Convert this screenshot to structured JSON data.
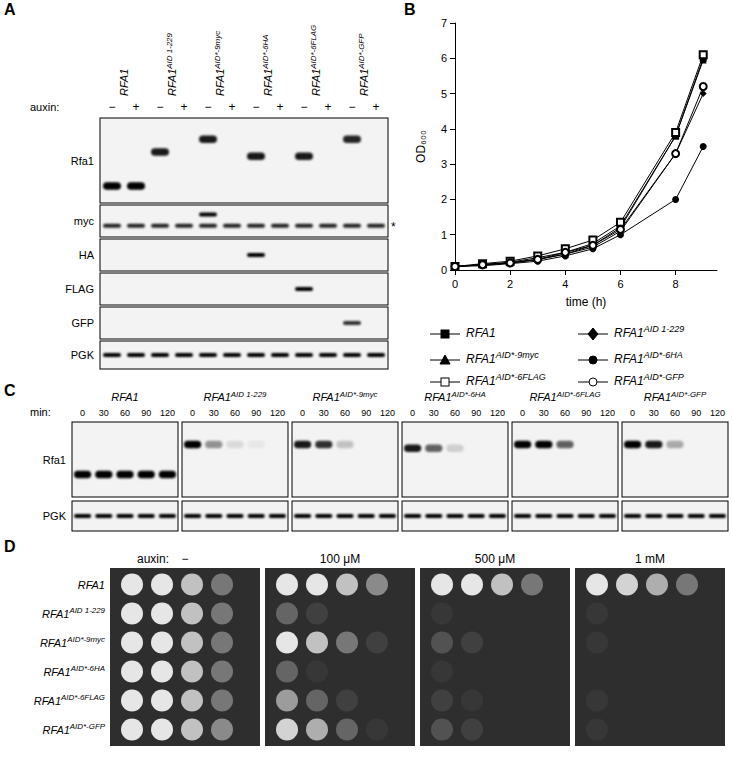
{
  "strains": [
    {
      "name": "RFA1"
    },
    {
      "name": "RFA1",
      "superscript": "AID 1-229"
    },
    {
      "name": "RFA1",
      "superscript": "AID*-9myc"
    },
    {
      "name": "RFA1",
      "superscript": "AID*-6HA"
    },
    {
      "name": "RFA1",
      "superscript": "AID*-6FLAG"
    },
    {
      "name": "RFA1",
      "superscript": "AID*-GFP"
    }
  ],
  "panels": {
    "A": {
      "letter": "A",
      "auxin_label": "auxin:",
      "auxin_states": [
        "−",
        "+"
      ],
      "rows": [
        {
          "label": "Rfa1",
          "bands": [
            {
              "mobility": 0.8,
              "intensity": [
                1,
                1,
                0,
                0,
                0,
                0,
                0,
                0,
                0,
                0,
                0,
                0
              ]
            },
            {
              "mobility": 0.4,
              "intensity": [
                0,
                0,
                0.9,
                0,
                0,
                0,
                0,
                0,
                0,
                0,
                0,
                0
              ]
            },
            {
              "mobility": 0.25,
              "intensity": [
                0,
                0,
                0,
                0,
                0.9,
                0,
                0,
                0,
                0,
                0,
                0.85,
                0
              ]
            },
            {
              "mobility": 0.45,
              "intensity": [
                0,
                0,
                0,
                0,
                0,
                0,
                0.9,
                0,
                0.9,
                0,
                0,
                0
              ]
            }
          ]
        },
        {
          "label": "myc",
          "bands": [
            {
              "mobility": 0.3,
              "intensity": [
                0,
                0,
                0,
                0,
                1,
                0,
                0,
                0,
                0,
                0,
                0,
                0
              ]
            },
            {
              "mobility": 0.65,
              "intensity": [
                0.85,
                0.85,
                0.85,
                0.85,
                0.85,
                0.85,
                0.85,
                0.85,
                0.85,
                0.85,
                0.85,
                0.85
              ],
              "note": "*"
            }
          ]
        },
        {
          "label": "HA",
          "bands": [
            {
              "mobility": 0.5,
              "intensity": [
                0,
                0,
                0,
                0,
                0,
                0,
                1,
                0,
                0,
                0,
                0,
                0
              ]
            }
          ]
        },
        {
          "label": "FLAG",
          "bands": [
            {
              "mobility": 0.5,
              "intensity": [
                0,
                0,
                0,
                0,
                0,
                0,
                0,
                0,
                1,
                0,
                0,
                0
              ]
            }
          ]
        },
        {
          "label": "GFP",
          "bands": [
            {
              "mobility": 0.5,
              "intensity": [
                0,
                0,
                0,
                0,
                0,
                0,
                0,
                0,
                0,
                0,
                0.8,
                0
              ]
            }
          ]
        },
        {
          "label": "PGK",
          "bands": [
            {
              "mobility": 0.5,
              "intensity": [
                1,
                1,
                1,
                1,
                1,
                1,
                1,
                1,
                1,
                1,
                1,
                1
              ]
            }
          ]
        }
      ]
    },
    "C": {
      "letter": "C",
      "time_label": "min:",
      "times": [
        0,
        30,
        60,
        90,
        120
      ],
      "rows": [
        "Rfa1",
        "PGK"
      ],
      "blots": [
        {
          "mobility": [
            0.7,
            0.5
          ],
          "intensity": [
            [
              1,
              1,
              1,
              1,
              1
            ],
            [
              1,
              1,
              1,
              1,
              1
            ]
          ]
        },
        {
          "mobility": [
            0.3,
            0.5
          ],
          "intensity": [
            [
              1,
              0.4,
              0.1,
              0.05,
              0
            ],
            [
              1,
              1,
              1,
              1,
              1
            ]
          ]
        },
        {
          "mobility": [
            0.3,
            0.5
          ],
          "intensity": [
            [
              0.9,
              0.8,
              0.2,
              0,
              0
            ],
            [
              1,
              1,
              1,
              1,
              1
            ]
          ]
        },
        {
          "mobility": [
            0.35,
            0.5
          ],
          "intensity": [
            [
              0.9,
              0.6,
              0.15,
              0,
              0
            ],
            [
              1,
              1,
              1,
              1,
              1
            ]
          ]
        },
        {
          "mobility": [
            0.3,
            0.5
          ],
          "intensity": [
            [
              1,
              1,
              0.6,
              0,
              0
            ],
            [
              1,
              1,
              1,
              1,
              1
            ]
          ]
        },
        {
          "mobility": [
            0.3,
            0.5
          ],
          "intensity": [
            [
              1,
              0.9,
              0.3,
              0,
              0
            ],
            [
              1,
              1,
              1,
              1,
              1
            ]
          ]
        }
      ]
    },
    "D": {
      "letter": "D",
      "auxin_label": "auxin:",
      "conditions": [
        "−",
        "100 μM",
        "500 μM",
        "1 mM"
      ],
      "growth": [
        [
          [
            1,
            1,
            0.8,
            0.4
          ],
          [
            1,
            1,
            0.8,
            0.4
          ],
          [
            1,
            1,
            0.8,
            0.4
          ],
          [
            1,
            1,
            0.8,
            0.4
          ],
          [
            1,
            1,
            0.8,
            0.4
          ],
          [
            1,
            1,
            0.8,
            0.5
          ]
        ],
        [
          [
            1,
            1,
            0.8,
            0.5
          ],
          [
            0.3,
            0.1,
            0,
            0
          ],
          [
            1,
            0.8,
            0.4,
            0.1
          ],
          [
            0.3,
            0.05,
            0,
            0
          ],
          [
            0.6,
            0.3,
            0.1,
            0
          ],
          [
            0.9,
            0.7,
            0.3,
            0.05
          ]
        ],
        [
          [
            1,
            1,
            0.8,
            0.4
          ],
          [
            0.05,
            0,
            0,
            0
          ],
          [
            0.2,
            0.1,
            0,
            0
          ],
          [
            0.05,
            0,
            0,
            0
          ],
          [
            0.1,
            0.05,
            0,
            0
          ],
          [
            0.2,
            0.1,
            0,
            0
          ]
        ],
        [
          [
            1,
            0.9,
            0.7,
            0.4
          ],
          [
            0.05,
            0,
            0,
            0
          ],
          [
            0.05,
            0,
            0,
            0
          ],
          [
            0,
            0,
            0,
            0
          ],
          [
            0.05,
            0,
            0,
            0
          ],
          [
            0.05,
            0,
            0,
            0
          ]
        ]
      ]
    }
  },
  "chart_data": {
    "type": "line",
    "letter": "B",
    "x": [
      0,
      1,
      2,
      3,
      4,
      5,
      6,
      8,
      9
    ],
    "xlim": [
      0,
      9.5
    ],
    "xticks": [
      0,
      2,
      4,
      6,
      8
    ],
    "ylim": [
      0,
      7
    ],
    "yticks": [
      0,
      1,
      2,
      3,
      4,
      5,
      6,
      7
    ],
    "x_label": "time (h)",
    "y_label": "OD₆₀₀",
    "grid": false,
    "series": [
      {
        "name": "RFA1",
        "color": "#000000",
        "marker": "square",
        "values": [
          0.1,
          0.15,
          0.22,
          0.35,
          0.5,
          0.75,
          1.25,
          3.8,
          6.0
        ]
      },
      {
        "name": "RFA1",
        "superscript": "AID 1-229",
        "color": "#000000",
        "marker": "diamond",
        "values": [
          0.1,
          0.15,
          0.2,
          0.3,
          0.45,
          0.65,
          1.1,
          3.3,
          5.0
        ]
      },
      {
        "name": "RFA1",
        "superscript": "AID*-9myc",
        "color": "#000000",
        "marker": "triangle",
        "values": [
          0.1,
          0.15,
          0.2,
          0.3,
          0.45,
          0.7,
          1.2,
          3.8,
          5.95
        ]
      },
      {
        "name": "RFA1",
        "superscript": "AID*-6HA",
        "color": "#000000",
        "marker": "circle",
        "values": [
          0.1,
          0.12,
          0.18,
          0.25,
          0.4,
          0.6,
          1.0,
          2.0,
          3.5
        ]
      },
      {
        "name": "RFA1",
        "superscript": "AID*-6FLAG",
        "color": "#000000",
        "marker": "open_square",
        "values": [
          0.1,
          0.18,
          0.25,
          0.4,
          0.6,
          0.85,
          1.35,
          3.9,
          6.1
        ]
      },
      {
        "name": "RFA1",
        "superscript": "AID*-GFP",
        "color": "#000000",
        "marker": "open_circle",
        "values": [
          0.1,
          0.15,
          0.2,
          0.3,
          0.5,
          0.7,
          1.15,
          3.3,
          5.2
        ]
      }
    ]
  }
}
